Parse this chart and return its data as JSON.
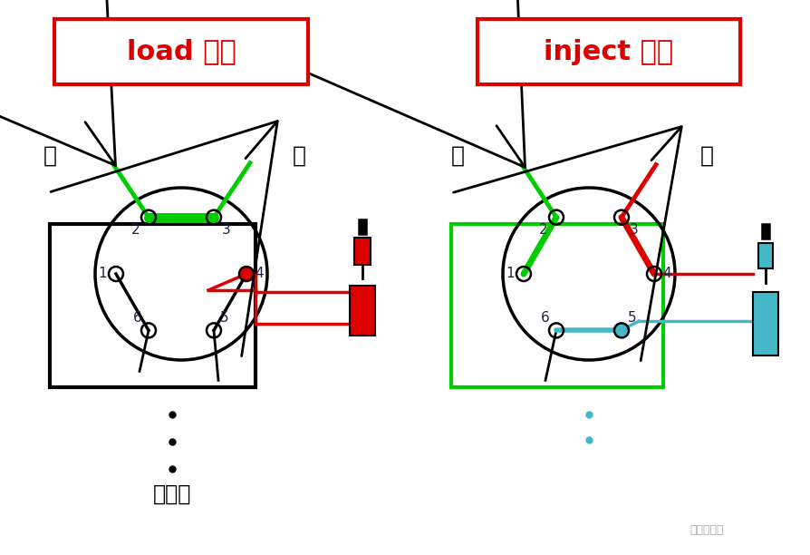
{
  "bg_color": "#ffffff",
  "title_load": "load 位置",
  "title_inject": "inject 位置",
  "title_color": "#dd0000",
  "pump_label": "泵",
  "col_label": "柱",
  "loop_label": "定量环",
  "watermark": "实验小助手"
}
